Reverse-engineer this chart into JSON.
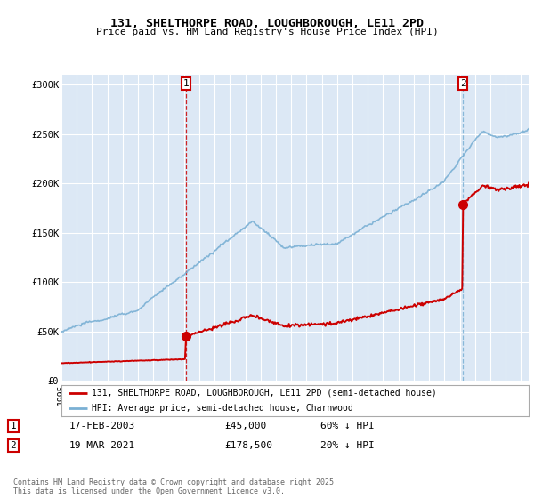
{
  "title_line1": "131, SHELTHORPE ROAD, LOUGHBOROUGH, LE11 2PD",
  "title_line2": "Price paid vs. HM Land Registry's House Price Index (HPI)",
  "legend_label_red": "131, SHELTHORPE ROAD, LOUGHBOROUGH, LE11 2PD (semi-detached house)",
  "legend_label_blue": "HPI: Average price, semi-detached house, Charnwood",
  "footnote": "Contains HM Land Registry data © Crown copyright and database right 2025.\nThis data is licensed under the Open Government Licence v3.0.",
  "transaction1_date": "17-FEB-2003",
  "transaction1_price": "£45,000",
  "transaction1_note": "60% ↓ HPI",
  "transaction2_date": "19-MAR-2021",
  "transaction2_price": "£178,500",
  "transaction2_note": "20% ↓ HPI",
  "red_line_color": "#cc0000",
  "blue_line_color": "#7ab0d4",
  "marker_dot_color": "#cc0000",
  "plot_bg_color": "#dce8f5",
  "fig_bg_color": "#ffffff",
  "grid_color": "#ffffff",
  "marker1_x_year": 2003.12,
  "marker1_y": 45000,
  "marker2_x_year": 2021.21,
  "marker2_y": 178500,
  "ylim_max": 310000,
  "yticks": [
    0,
    50000,
    100000,
    150000,
    200000,
    250000,
    300000
  ],
  "ytick_labels": [
    "£0",
    "£50K",
    "£100K",
    "£150K",
    "£200K",
    "£250K",
    "£300K"
  ],
  "xlim_start": 1995,
  "xlim_end": 2025.5
}
